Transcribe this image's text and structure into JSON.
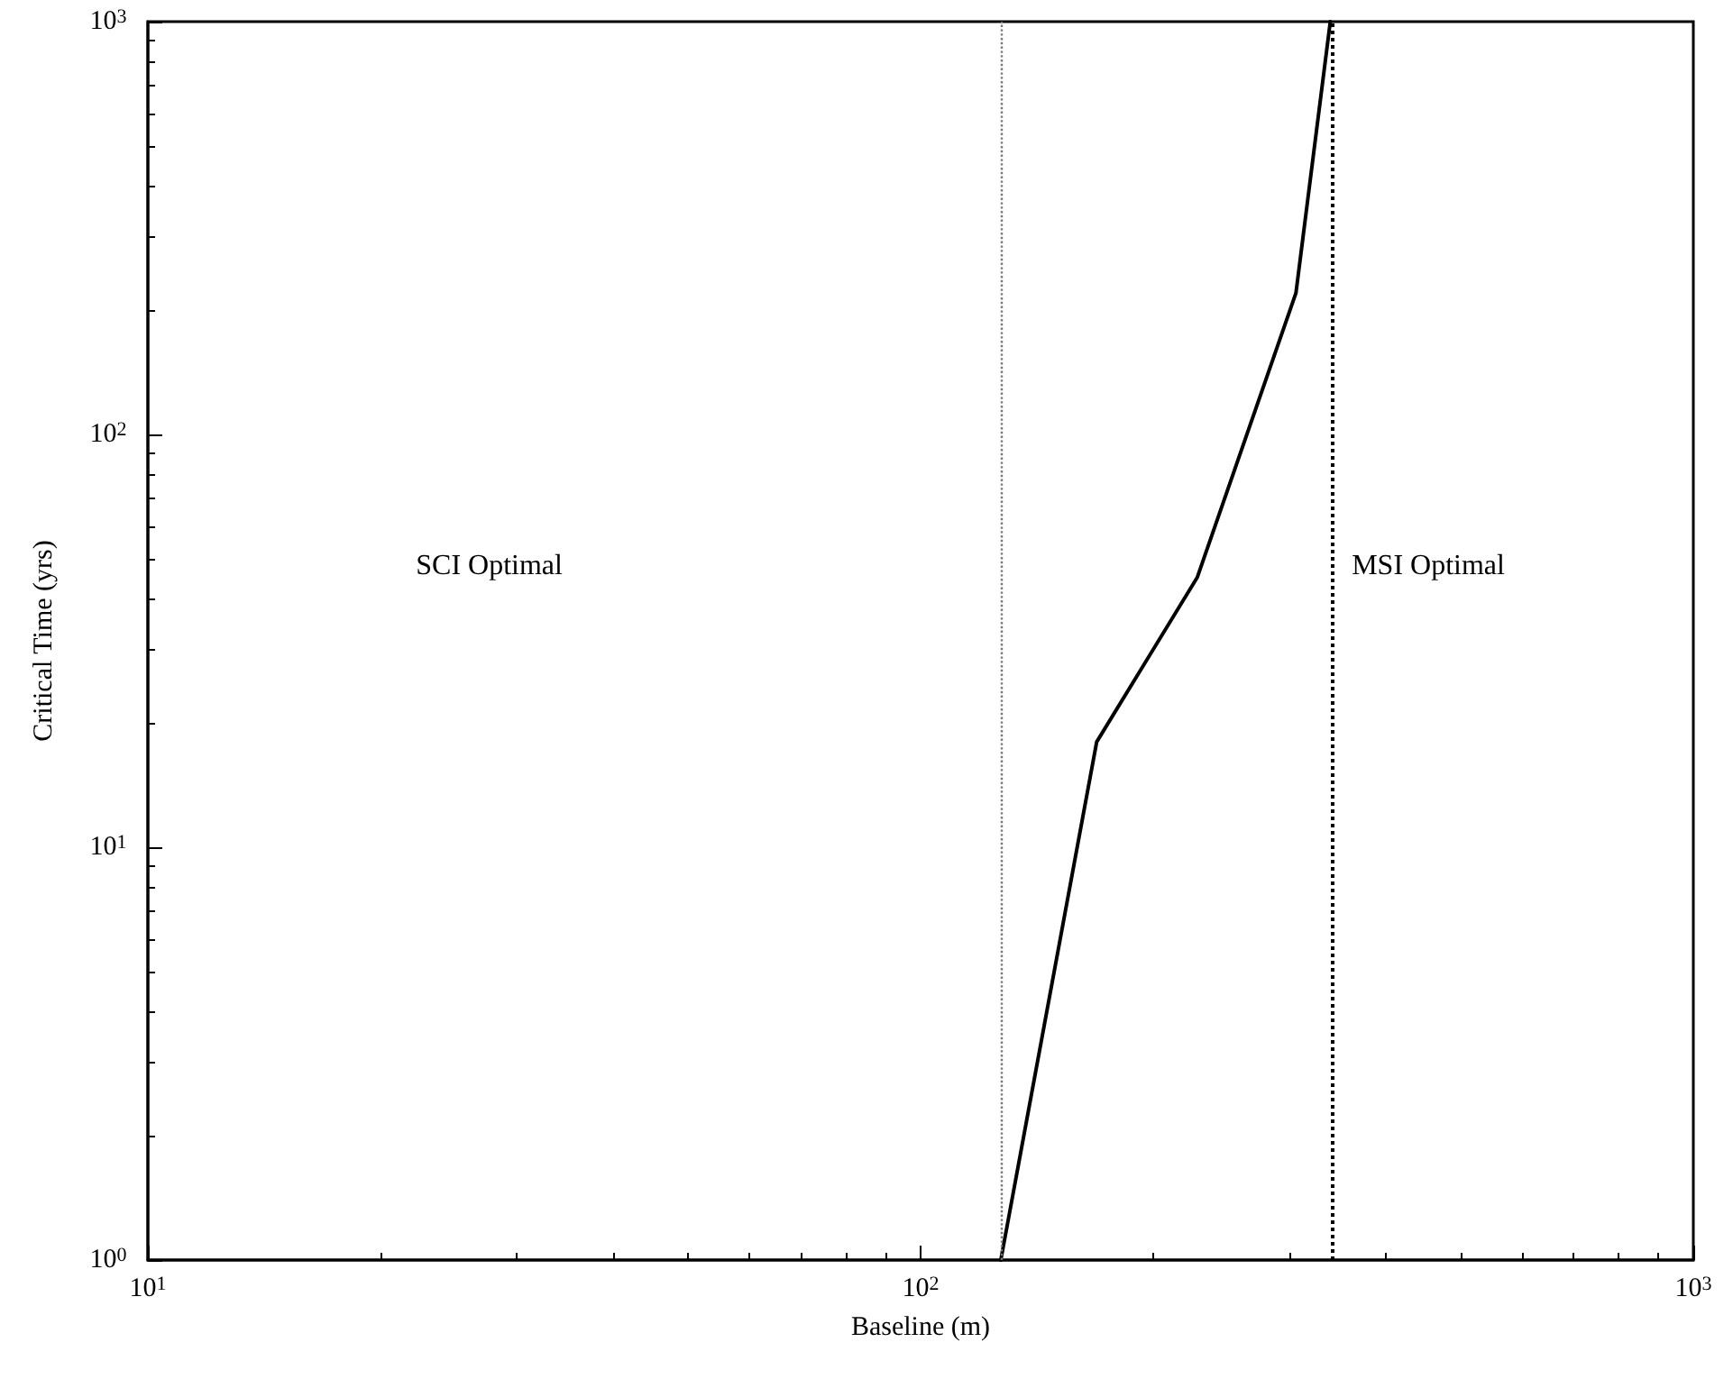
{
  "chart_data": {
    "type": "line",
    "xlabel": "Baseline (m)",
    "ylabel": "Critical Time (yrs)",
    "log": "xy",
    "grid": false,
    "marker": "none",
    "line_style": "solid",
    "xlim": [
      10,
      1000
    ],
    "xticks": [
      {
        "value": 10,
        "label": "10$^{1}$"
      },
      {
        "value": 100,
        "label": "10$^{2}$"
      },
      {
        "value": 1000,
        "label": "10$^{3}$"
      }
    ],
    "ylim": [
      1,
      1000
    ],
    "yticks": [
      {
        "value": 1,
        "label": "10$^{0}$"
      },
      {
        "value": 10,
        "label": "10$^{1}$"
      },
      {
        "value": 100,
        "label": "10$^{2}$"
      },
      {
        "value": 1000,
        "label": "10$^{3}$"
      }
    ],
    "series": [
      {
        "color": "#000000",
        "x": [
          127,
          169,
          228,
          306,
          339
        ],
        "values": [
          1,
          18,
          45,
          220,
          1000
        ]
      }
    ],
    "ref_lines": [
      {
        "axis": "x",
        "value": 127,
        "color": "#777777",
        "line_style": "dotted"
      },
      {
        "axis": "x",
        "value": 341,
        "color": "#000000",
        "line_style": "dotted"
      }
    ],
    "annotations": [
      "SCI Optimal",
      "MSI Optimal"
    ]
  }
}
